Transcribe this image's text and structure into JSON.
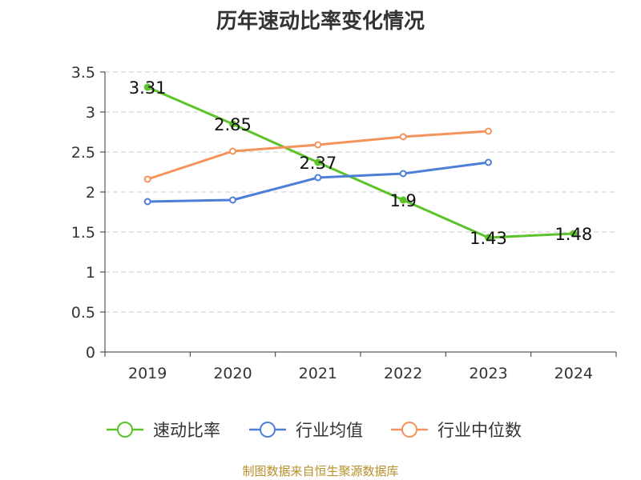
{
  "chart_data": {
    "type": "line",
    "title": "历年速动比率变化情况",
    "categories": [
      "2019",
      "2020",
      "2021",
      "2022",
      "2023",
      "2024"
    ],
    "ylim": [
      0,
      3.5
    ],
    "yticks": [
      "0",
      "0.5",
      "1",
      "1.5",
      "2",
      "2.5",
      "3",
      "3.5"
    ],
    "grid": "horizontal dashed",
    "legend_position": "bottom",
    "series": [
      {
        "name": "速动比率",
        "color": "#5cc32a",
        "values": [
          3.31,
          2.85,
          2.37,
          1.9,
          1.43,
          1.48
        ],
        "labels": [
          "3.31",
          "2.85",
          "2.37",
          "1.9",
          "1.43",
          "1.48"
        ]
      },
      {
        "name": "行业均值",
        "color": "#4e7fd8",
        "values": [
          1.88,
          1.9,
          2.18,
          2.23,
          2.37,
          null
        ]
      },
      {
        "name": "行业中位数",
        "color": "#f5935d",
        "values": [
          2.16,
          2.51,
          2.59,
          2.69,
          2.76,
          null
        ]
      }
    ]
  },
  "source_text": "制图数据来自恒生聚源数据库"
}
